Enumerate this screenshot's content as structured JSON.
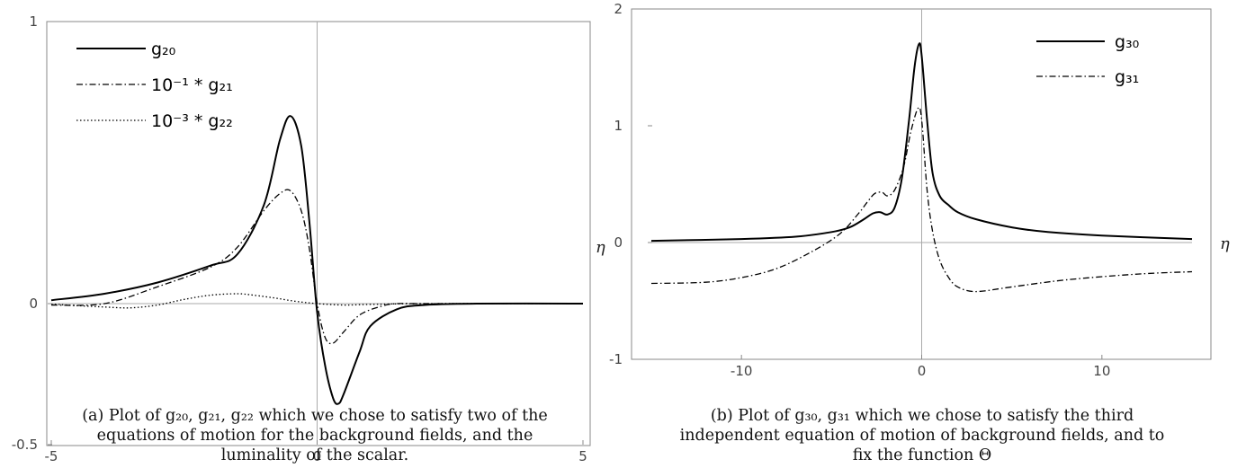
{
  "chart_data": [
    {
      "type": "line",
      "xlim": [
        -5,
        5
      ],
      "ylim": [
        -0.5,
        1
      ],
      "xticks": [
        "-5",
        "0",
        "5"
      ],
      "yticks": [
        "-0.5",
        "0",
        "1"
      ],
      "xlabel": "η",
      "ylabel": "",
      "grid": false,
      "legend_position": "top-left",
      "series": [
        {
          "name": "g20",
          "legend": "g₂₀",
          "style": "solid",
          "x": [
            -5,
            -4,
            -3,
            -2,
            -1.5,
            -1,
            -0.7,
            -0.5,
            -0.3,
            -0.15,
            0,
            0.15,
            0.3,
            0.4,
            0.5,
            0.8,
            1,
            1.5,
            2,
            3,
            5
          ],
          "y": [
            0.012,
            0.035,
            0.075,
            0.135,
            0.175,
            0.35,
            0.58,
            0.665,
            0.56,
            0.3,
            -0.03,
            -0.22,
            -0.335,
            -0.355,
            -0.32,
            -0.17,
            -0.08,
            -0.02,
            -0.005,
            0,
            0
          ]
        },
        {
          "name": "g21",
          "legend": "10⁻¹ * g₂₁",
          "style": "dashdot",
          "x": [
            -5,
            -4,
            -3,
            -2,
            -1.5,
            -1,
            -0.7,
            -0.5,
            -0.3,
            -0.15,
            0,
            0.15,
            0.3,
            0.5,
            0.8,
            1.2,
            1.5,
            2,
            3,
            5
          ],
          "y": [
            -0.005,
            0,
            0.06,
            0.13,
            0.2,
            0.33,
            0.39,
            0.4,
            0.33,
            0.2,
            0,
            -0.12,
            -0.14,
            -0.1,
            -0.04,
            -0.01,
            0,
            0,
            0,
            0
          ]
        },
        {
          "name": "g22",
          "legend": "10⁻³ * g₂₂",
          "style": "dotted",
          "x": [
            -5,
            -4,
            -3.5,
            -3,
            -2.5,
            -2,
            -1.5,
            -1.2,
            -0.8,
            -0.4,
            0,
            0.5,
            1,
            2,
            5
          ],
          "y": [
            -0.002,
            -0.012,
            -0.015,
            -0.005,
            0.015,
            0.03,
            0.035,
            0.03,
            0.02,
            0.008,
            0,
            -0.005,
            -0.003,
            0,
            0
          ]
        }
      ]
    },
    {
      "type": "line",
      "xlim": [
        -15,
        15
      ],
      "ylim": [
        -1,
        2
      ],
      "xticks": [
        "-10",
        "0",
        "10"
      ],
      "yticks": [
        "-1",
        "0",
        "1",
        "2"
      ],
      "xlabel": "η",
      "ylabel": "",
      "grid": false,
      "legend_position": "top-right",
      "series": [
        {
          "name": "g30",
          "legend": "g₃₀",
          "style": "solid",
          "x": [
            -15,
            -10,
            -7,
            -5,
            -4,
            -3.2,
            -2.7,
            -2.3,
            -1.9,
            -1.5,
            -1.1,
            -0.7,
            -0.4,
            -0.15,
            0,
            0.3,
            0.6,
            1,
            1.5,
            2,
            3,
            5,
            7,
            10,
            15
          ],
          "y": [
            0.015,
            0.03,
            0.05,
            0.09,
            0.13,
            0.2,
            0.25,
            0.26,
            0.24,
            0.3,
            0.55,
            1.05,
            1.5,
            1.7,
            1.6,
            1.05,
            0.6,
            0.4,
            0.32,
            0.26,
            0.2,
            0.13,
            0.09,
            0.06,
            0.03
          ]
        },
        {
          "name": "g31",
          "legend": "g₃₁",
          "style": "dashdot",
          "x": [
            -15,
            -12,
            -10,
            -8,
            -6,
            -4.5,
            -3.5,
            -3,
            -2.6,
            -2.2,
            -1.9,
            -1.5,
            -1,
            -0.6,
            -0.2,
            0,
            0.3,
            0.6,
            1,
            1.5,
            2,
            3,
            5,
            8,
            12,
            15
          ],
          "y": [
            -0.35,
            -0.34,
            -0.3,
            -0.22,
            -0.07,
            0.08,
            0.25,
            0.35,
            0.42,
            0.43,
            0.4,
            0.45,
            0.65,
            0.95,
            1.15,
            1.05,
            0.45,
            0.1,
            -0.15,
            -0.3,
            -0.38,
            -0.42,
            -0.38,
            -0.32,
            -0.27,
            -0.25
          ]
        }
      ]
    }
  ],
  "captions": [
    {
      "prefix": "(a) ",
      "lines": [
        "Plot of g₂₀, g₂₁, g₂₂ which we chose to satisfy two of the",
        "equations of motion for the background fields, and the",
        "luminality of the scalar."
      ]
    },
    {
      "prefix": "(b) ",
      "lines": [
        "Plot of g₃₀, g₃₁ which we chose to satisfy the third",
        "independent equation of motion of background fields, and to",
        "fix the function Θ"
      ]
    }
  ]
}
